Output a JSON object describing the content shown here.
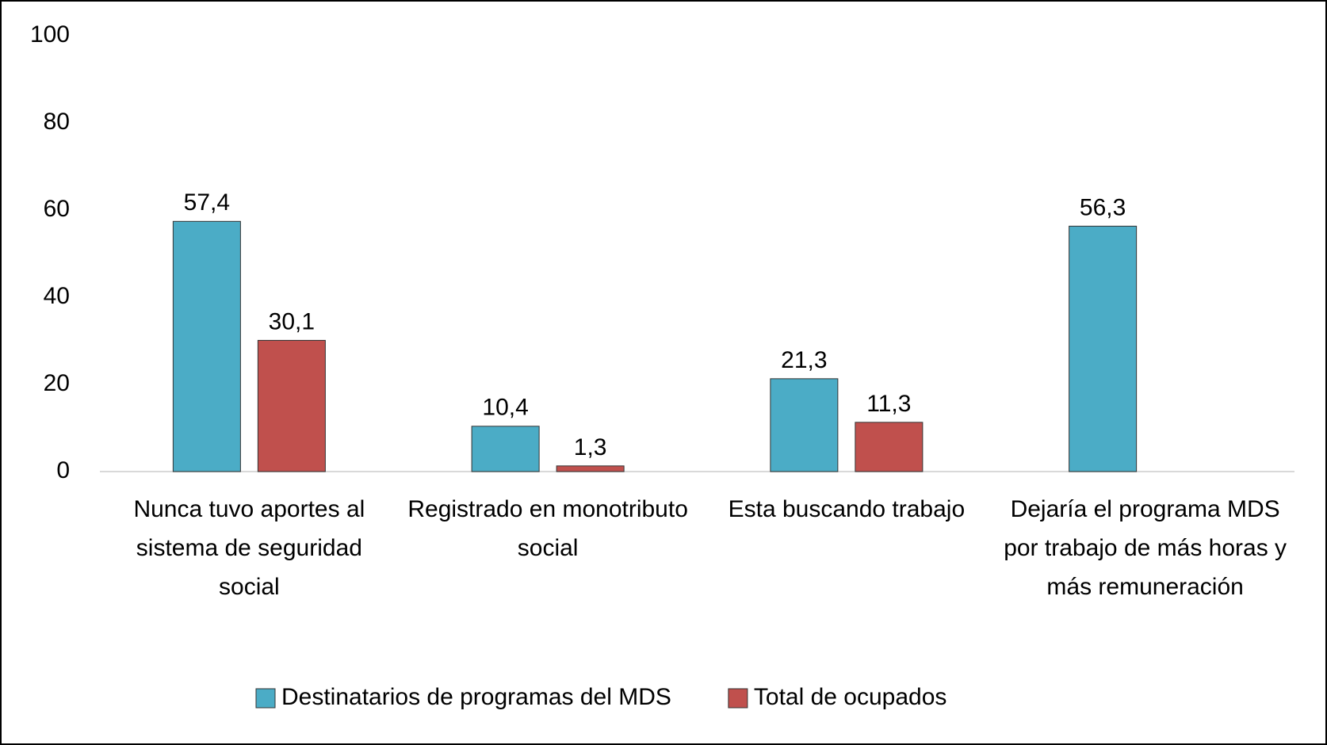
{
  "chart_data": {
    "type": "bar",
    "categories": [
      "Nunca tuvo aportes al sistema de seguridad social",
      "Registrado en monotributo social",
      "Esta buscando trabajo",
      "Dejaría el programa MDS por trabajo de más horas y más remuneración"
    ],
    "series": [
      {
        "name": "Destinatarios de programas del MDS",
        "color": "#4bacc6",
        "values": [
          57.4,
          10.4,
          21.3,
          56.3
        ],
        "value_labels": [
          "57,4",
          "10,4",
          "21,3",
          "56,3"
        ]
      },
      {
        "name": "Total de ocupados",
        "color": "#c0504d",
        "values": [
          30.1,
          1.3,
          11.3,
          null
        ],
        "value_labels": [
          "30,1",
          "1,3",
          "11,3",
          null
        ]
      }
    ],
    "ylim": [
      0,
      100
    ],
    "yticks": [
      0,
      20,
      40,
      60,
      80,
      100
    ],
    "grid": false,
    "legend": "bottom"
  }
}
